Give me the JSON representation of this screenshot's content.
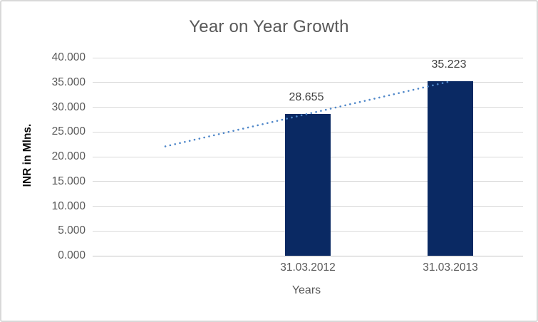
{
  "chart_data": {
    "type": "bar",
    "title": "Year on Year Growth",
    "categories": [
      "31.03.2012",
      "31.03.2013"
    ],
    "values": [
      28.655,
      35.223
    ],
    "data_labels": [
      "28.655",
      "35.223"
    ],
    "xlabel": "Years",
    "ylabel": "INR in Mlns.",
    "ylim": [
      0,
      40
    ],
    "ytick_step": 5,
    "ytick_labels": [
      "0.000",
      "5.000",
      "10.000",
      "15.000",
      "20.000",
      "25.000",
      "30.000",
      "35.000",
      "40.000"
    ],
    "grid": true,
    "legend": "none",
    "trendline": {
      "type": "linear",
      "style": "dotted",
      "backward_periods": 1,
      "start_value": 22.087,
      "end_value": 35.223
    }
  },
  "colors": {
    "bar": "#0A2963",
    "trendline": "#4F87C9",
    "title_text": "#595959",
    "axis_text": "#595959",
    "y_axis_title_text": "#0D0D0D",
    "data_label_text": "#404040",
    "gridline": "#D9D9D9",
    "axis_line": "#C6C6C6",
    "border": "#D9D9D9",
    "background": "#FFFFFF"
  }
}
